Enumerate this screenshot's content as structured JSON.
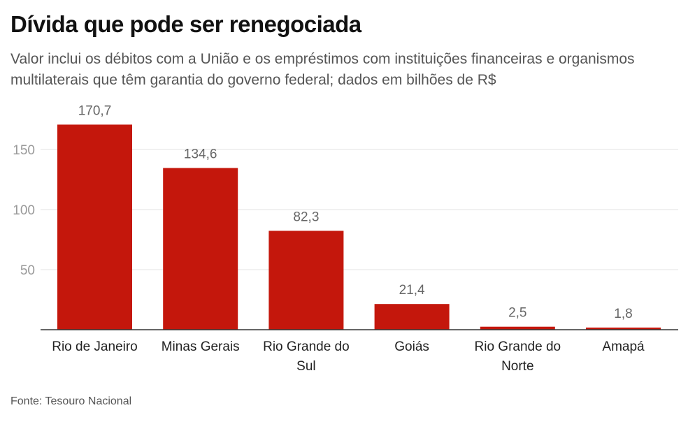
{
  "chart_data": {
    "type": "bar",
    "title": "Dívida que pode ser renegociada",
    "subtitle": "Valor inclui os débitos com a União e os empréstimos com instituições financeiras e organismos multilaterais que têm garantia do governo federal; dados em bilhões de R$",
    "categories": [
      [
        "Rio de Janeiro"
      ],
      [
        "Minas Gerais"
      ],
      [
        "Rio Grande do",
        "Sul"
      ],
      [
        "Goiás"
      ],
      [
        "Rio Grande do",
        "Norte"
      ],
      [
        "Amapá"
      ]
    ],
    "values": [
      170.7,
      134.6,
      82.3,
      21.4,
      2.5,
      1.8
    ],
    "value_labels": [
      "170,7",
      "134,6",
      "82,3",
      "21,4",
      "2,5",
      "1,8"
    ],
    "yticks": [
      50,
      100,
      150
    ],
    "ylim": [
      0,
      180
    ],
    "grid": true,
    "bar_color": "#C4170C",
    "source": "Fonte: Tesouro Nacional"
  }
}
